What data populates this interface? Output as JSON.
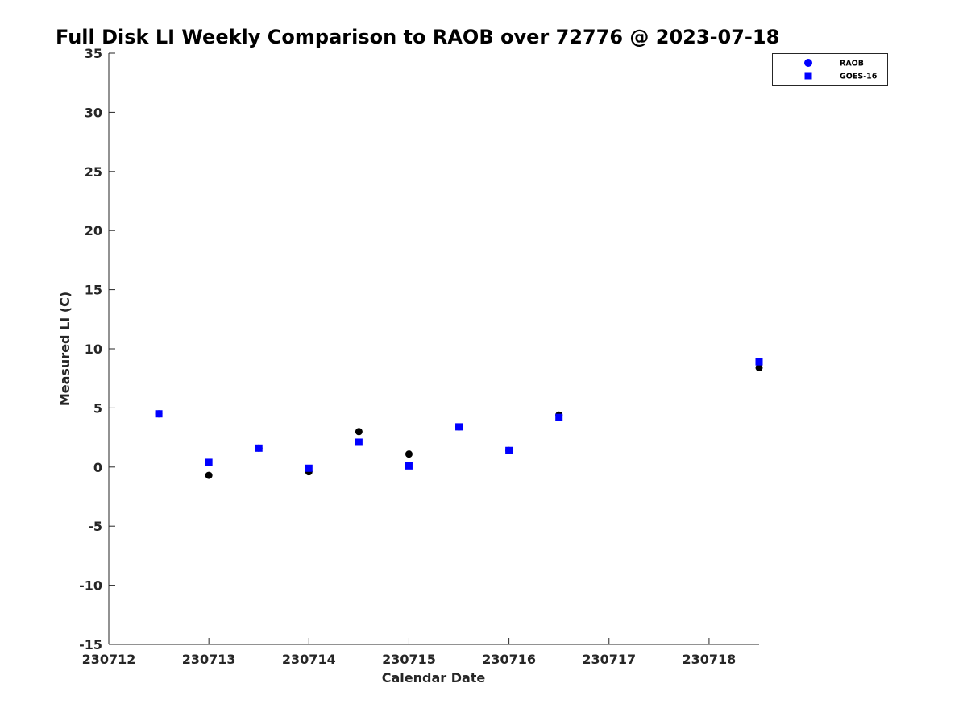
{
  "chart_data": {
    "type": "scatter",
    "title": "Full Disk LI Weekly Comparison to RAOB over 72776 @ 2023-07-18",
    "xlabel": "Calendar Date",
    "ylabel": "Measured LI (C)",
    "xlim": [
      "2023-07-12",
      "2023-07-18T12:00"
    ],
    "ylim": [
      -15,
      35
    ],
    "x_ticks": [
      "2023-07-12",
      "2023-07-13",
      "2023-07-14",
      "2023-07-15",
      "2023-07-16",
      "2023-07-17",
      "2023-07-18"
    ],
    "x_tick_labels": [
      "230712",
      "230713",
      "230714",
      "230715",
      "230716",
      "230717",
      "230718"
    ],
    "y_ticks": [
      -15,
      -10,
      -5,
      0,
      5,
      10,
      15,
      20,
      25,
      30,
      35
    ],
    "y_tick_labels": [
      "-15",
      "-10",
      "-5",
      "0",
      "5",
      "10",
      "15",
      "20",
      "25",
      "30",
      "35"
    ],
    "grid": false,
    "legend_position": "top-right",
    "series": [
      {
        "name": "RAOB",
        "marker": "circle",
        "color": "#000000",
        "legend_color": "#0000ff",
        "points": [
          {
            "x": "2023-07-12T12:00",
            "y": 4.5
          },
          {
            "x": "2023-07-13T00:00",
            "y": -0.7
          },
          {
            "x": "2023-07-13T12:00",
            "y": 1.6
          },
          {
            "x": "2023-07-14T00:00",
            "y": -0.4
          },
          {
            "x": "2023-07-14T12:00",
            "y": 3.0
          },
          {
            "x": "2023-07-15T00:00",
            "y": 1.1
          },
          {
            "x": "2023-07-15T12:00",
            "y": 3.4
          },
          {
            "x": "2023-07-16T00:00",
            "y": 1.4
          },
          {
            "x": "2023-07-16T12:00",
            "y": 4.4
          },
          {
            "x": "2023-07-18T12:00",
            "y": 8.4
          }
        ]
      },
      {
        "name": "GOES-16",
        "marker": "square",
        "color": "#0000ff",
        "legend_color": "#0000ff",
        "points": [
          {
            "x": "2023-07-12T12:00",
            "y": 4.5
          },
          {
            "x": "2023-07-13T00:00",
            "y": 0.4
          },
          {
            "x": "2023-07-13T12:00",
            "y": 1.6
          },
          {
            "x": "2023-07-14T00:00",
            "y": -0.1
          },
          {
            "x": "2023-07-14T12:00",
            "y": 2.1
          },
          {
            "x": "2023-07-15T00:00",
            "y": 0.1
          },
          {
            "x": "2023-07-15T12:00",
            "y": 3.4
          },
          {
            "x": "2023-07-16T00:00",
            "y": 1.4
          },
          {
            "x": "2023-07-16T12:00",
            "y": 4.2
          },
          {
            "x": "2023-07-18T12:00",
            "y": 8.9
          }
        ]
      }
    ]
  }
}
